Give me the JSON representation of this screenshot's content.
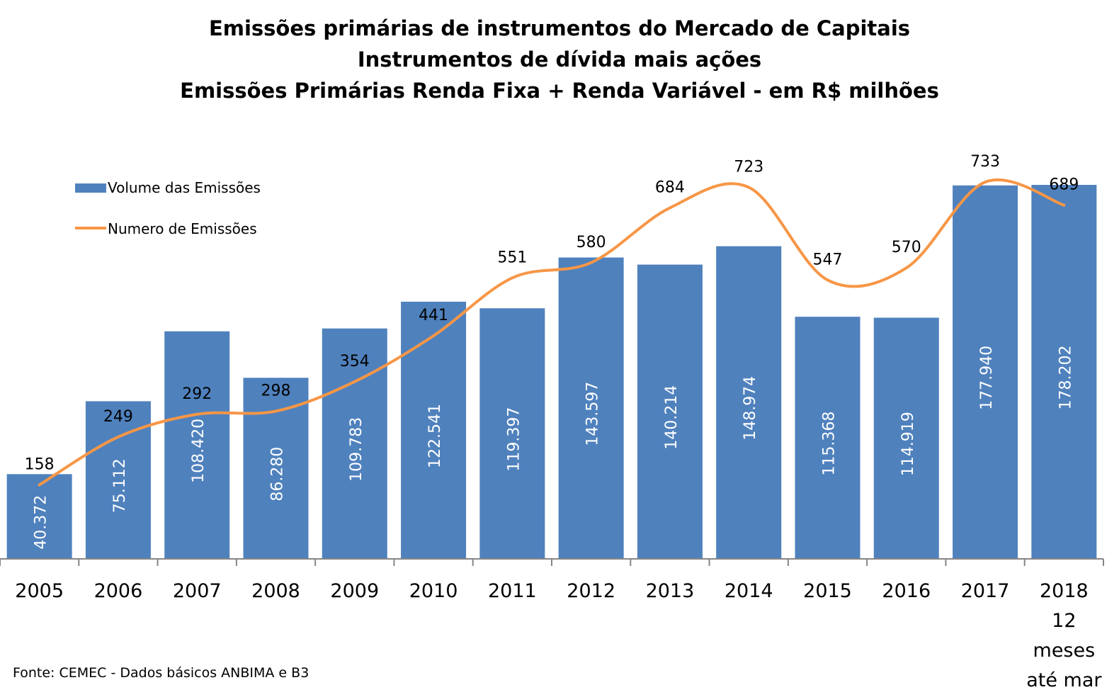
{
  "chart_data": {
    "type": "bar",
    "title_lines": [
      "Emissões primárias de instrumentos do Mercado de Capitais",
      "Instrumentos de dívida mais ações",
      "Emissões Primárias Renda Fixa + Renda Variável - em R$ milhões"
    ],
    "categories": [
      [
        "2005"
      ],
      [
        "2006"
      ],
      [
        "2007"
      ],
      [
        "2008"
      ],
      [
        "2009"
      ],
      [
        "2010"
      ],
      [
        "2011"
      ],
      [
        "2012"
      ],
      [
        "2013"
      ],
      [
        "2014"
      ],
      [
        "2015"
      ],
      [
        "2016"
      ],
      [
        "2017"
      ],
      [
        "2018",
        "12",
        "meses",
        "até mar"
      ]
    ],
    "series": [
      {
        "name": "Volume das Emissões",
        "type": "bar",
        "color": "#4f81bd",
        "values": [
          40372,
          75112,
          108420,
          86280,
          109783,
          122541,
          119397,
          143597,
          140214,
          148974,
          115368,
          114919,
          177940,
          178202
        ],
        "labels": [
          "40.372",
          "75.112",
          "108.420",
          "86.280",
          "109.783",
          "122.541",
          "119.397",
          "143.597",
          "140.214",
          "148.974",
          "115.368",
          "114.919",
          "177.940",
          "178.202"
        ]
      },
      {
        "name": "Numero de Emissões",
        "type": "line",
        "smooth": true,
        "color": "#f79646",
        "values": [
          158,
          249,
          292,
          298,
          354,
          441,
          551,
          580,
          684,
          723,
          547,
          570,
          733,
          689
        ],
        "labels": [
          "158",
          "249",
          "292",
          "298",
          "354",
          "441",
          "551",
          "580",
          "684",
          "723",
          "547",
          "570",
          "733",
          "689"
        ]
      }
    ],
    "legend_position": "top-left",
    "grid": false,
    "y_axis_visible": false
  },
  "footer": {
    "source": "Fonte: CEMEC - Dados básicos ANBIMA e B3"
  }
}
